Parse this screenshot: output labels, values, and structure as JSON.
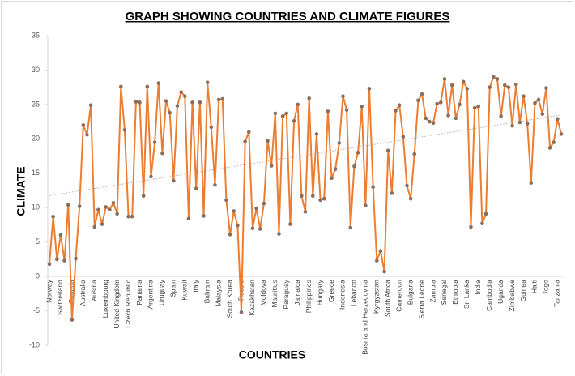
{
  "chart_data": {
    "type": "line",
    "title": "GRAPH SHOWING COUNTRIES AND CLIMATE FIGURES",
    "x_label": "COUNTRIES",
    "y_label": "CLIMATE",
    "categories": [
      "Norway",
      null,
      null,
      "Switzerland",
      null,
      null,
      "Canada",
      null,
      null,
      "Australia",
      null,
      null,
      "Austria",
      null,
      null,
      "Luxembourg",
      null,
      null,
      "United Kingdom",
      null,
      null,
      "Czech Republic",
      null,
      null,
      "Panama",
      null,
      null,
      "Argentina",
      null,
      null,
      "Uruguay",
      null,
      null,
      "Spain",
      null,
      null,
      "Kuwait",
      null,
      null,
      "Italy",
      null,
      null,
      "Bahrain",
      null,
      null,
      "Malaysia",
      null,
      null,
      "South Korea",
      null,
      null,
      "Russia",
      null,
      null,
      "Kazakhstan",
      null,
      null,
      "Moldova",
      null,
      null,
      "Mauritius",
      null,
      null,
      "Paraguay",
      null,
      null,
      "Jamaica",
      null,
      null,
      "Philippines",
      null,
      null,
      "Hungary",
      null,
      null,
      "Greece",
      null,
      null,
      "Indonesia",
      null,
      null,
      "Lebanon",
      null,
      null,
      "Bosnia and Herzegovina",
      null,
      null,
      "Kyrgyzstan",
      null,
      null,
      "South Africa",
      null,
      null,
      "Cameroon",
      null,
      null,
      "Bulgaria",
      null,
      null,
      "Sierra Leone",
      null,
      null,
      "Zambia",
      null,
      null,
      "Senegal",
      null,
      null,
      "Ethiopia",
      null,
      null,
      "Sri Lanka",
      null,
      null,
      "India",
      null,
      null,
      "Cambodia",
      null,
      null,
      "Uganda",
      null,
      null,
      "Zimbabwe",
      null,
      null,
      "Guinea",
      null,
      null,
      "Haiti",
      null,
      null,
      "Togo",
      null,
      null,
      "Tanzania",
      null
    ],
    "values": [
      1.8,
      8.7,
      2.5,
      6,
      2.3,
      10.4,
      -6.3,
      2.6,
      10.2,
      22,
      20.6,
      24.9,
      7.2,
      9.7,
      7.6,
      10.1,
      9.7,
      10.7,
      9.1,
      27.6,
      21.3,
      8.7,
      8.7,
      25.4,
      25.3,
      11.7,
      27.6,
      14.5,
      19.5,
      28.1,
      17.9,
      25.5,
      23.8,
      13.9,
      24.8,
      26.8,
      26.2,
      8.4,
      25.3,
      12.8,
      25.3,
      8.8,
      28.2,
      21.7,
      13.3,
      25.7,
      25.8,
      11.1,
      6.1,
      9.5,
      7.4,
      -5.2,
      19.6,
      21,
      7,
      9.9,
      6.9,
      10.6,
      19.7,
      16.1,
      23.7,
      6.2,
      23.3,
      23.7,
      7.6,
      22.6,
      25,
      11.7,
      9.4,
      25.9,
      11.7,
      20.7,
      11.1,
      11.3,
      24,
      14.3,
      15.6,
      19.4,
      26.2,
      24.2,
      7.1,
      16,
      18,
      24.7,
      10.3,
      27.3,
      13,
      2.3,
      3.7,
      0.7,
      18.3,
      12.1,
      24.1,
      24.9,
      20.3,
      13.2,
      11.3,
      17.8,
      25.6,
      26.5,
      23,
      22.5,
      22.3,
      25.1,
      25.3,
      28.7,
      23.4,
      27.8,
      23,
      25,
      28.3,
      27.3,
      7.2,
      24.5,
      24.7,
      7.7,
      9.1,
      27.5,
      29,
      28.7,
      23.3,
      27.8,
      27.5,
      21.9,
      27.9,
      22.4,
      26.2,
      22.2,
      13.6,
      25.2,
      25.7,
      23.6,
      27.4,
      18.7,
      19.5,
      22.9,
      20.7
    ],
    "color": "#ed7d31",
    "marker_color": "#8c6d5c",
    "trendline": true,
    "ylim": [
      -10,
      35
    ],
    "yticks": [
      -10,
      -5,
      0,
      5,
      10,
      15,
      20,
      25,
      30,
      35
    ]
  }
}
